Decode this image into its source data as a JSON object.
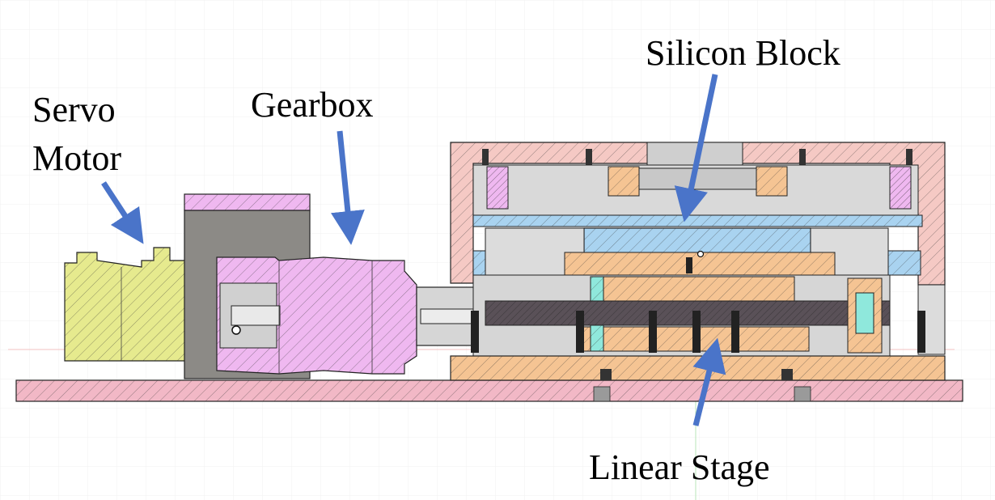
{
  "labels": {
    "servo_motor_line1": "Servo",
    "servo_motor_line2": "Motor",
    "gearbox": "Gearbox",
    "silicon_block": "Silicon Block",
    "linear_stage": "Linear Stage"
  },
  "colors": {
    "base_plate": "#f2b8c6",
    "servo_motor": "#e6ea8e",
    "gearbox": "#efb8f0",
    "housing": "#f5c9c4",
    "copper_parts": "#f5c493",
    "blue_parts": "#a9d3f0",
    "cyan_parts": "#8fe8dc",
    "steel_grey": "#cfcfcf",
    "dark_grey": "#8a8a8a",
    "arrow": "#4a74c9",
    "outline": "#222222"
  }
}
